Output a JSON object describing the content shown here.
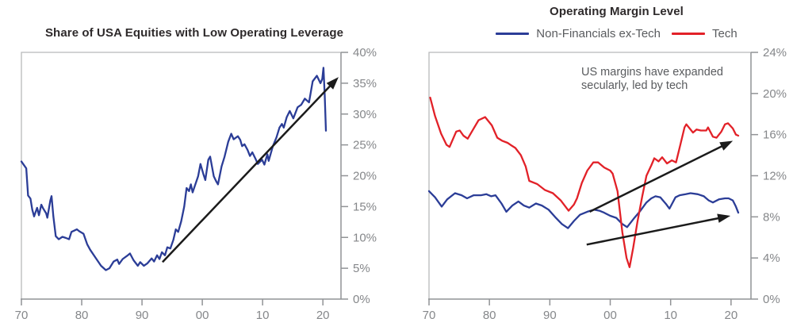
{
  "chart_data": [
    {
      "type": "line",
      "title": "Share of USA Equities with Low Operating Leverage",
      "xlabel": "",
      "ylabel": "",
      "grid": false,
      "x_range": [
        1970,
        2023
      ],
      "ylim": [
        0,
        40
      ],
      "x_ticks": [
        {
          "value": 1970,
          "label": "70"
        },
        {
          "value": 1980,
          "label": "80"
        },
        {
          "value": 1990,
          "label": "90"
        },
        {
          "value": 2000,
          "label": "00"
        },
        {
          "value": 2010,
          "label": "10"
        },
        {
          "value": 2020,
          "label": "20"
        }
      ],
      "y_ticks": [
        {
          "value": 0,
          "label": "0%"
        },
        {
          "value": 5,
          "label": "5%"
        },
        {
          "value": 10,
          "label": "10%"
        },
        {
          "value": 15,
          "label": "15%"
        },
        {
          "value": 20,
          "label": "20%"
        },
        {
          "value": 25,
          "label": "25%"
        },
        {
          "value": 30,
          "label": "30%"
        },
        {
          "value": 35,
          "label": "35%"
        },
        {
          "value": 40,
          "label": "40%"
        }
      ],
      "axis_color": "#919396",
      "frame_color": "#b8b9bb",
      "tick_label_color": "#85878a",
      "series": [
        {
          "name": "Share of USA equities with low operating leverage",
          "color": "#2b3d97",
          "points": [
            [
              1970.0,
              22.3
            ],
            [
              1970.8,
              21.2
            ],
            [
              1971.1,
              16.8
            ],
            [
              1971.5,
              16.3
            ],
            [
              1971.8,
              14.5
            ],
            [
              1972.1,
              13.4
            ],
            [
              1972.6,
              14.8
            ],
            [
              1972.9,
              13.6
            ],
            [
              1973.3,
              15.3
            ],
            [
              1973.6,
              14.7
            ],
            [
              1974.1,
              13.9
            ],
            [
              1974.3,
              13.2
            ],
            [
              1974.8,
              16.0
            ],
            [
              1975.0,
              16.7
            ],
            [
              1975.3,
              13.4
            ],
            [
              1975.7,
              10.2
            ],
            [
              1976.2,
              9.7
            ],
            [
              1976.8,
              10.1
            ],
            [
              1977.4,
              9.9
            ],
            [
              1977.9,
              9.7
            ],
            [
              1978.3,
              10.9
            ],
            [
              1979.2,
              11.3
            ],
            [
              1979.6,
              11.0
            ],
            [
              1980.3,
              10.6
            ],
            [
              1980.9,
              8.9
            ],
            [
              1981.4,
              8.0
            ],
            [
              1982.3,
              6.7
            ],
            [
              1983.2,
              5.4
            ],
            [
              1984.0,
              4.7
            ],
            [
              1984.6,
              5.0
            ],
            [
              1985.3,
              6.1
            ],
            [
              1985.9,
              6.4
            ],
            [
              1986.2,
              5.7
            ],
            [
              1986.8,
              6.5
            ],
            [
              1987.5,
              7.0
            ],
            [
              1988.0,
              7.4
            ],
            [
              1988.6,
              6.3
            ],
            [
              1989.3,
              5.4
            ],
            [
              1989.7,
              6.0
            ],
            [
              1990.3,
              5.4
            ],
            [
              1990.9,
              5.8
            ],
            [
              1991.6,
              6.6
            ],
            [
              1992.0,
              6.1
            ],
            [
              1992.5,
              7.1
            ],
            [
              1992.9,
              6.5
            ],
            [
              1993.3,
              7.6
            ],
            [
              1993.8,
              7.1
            ],
            [
              1994.2,
              8.4
            ],
            [
              1994.7,
              8.2
            ],
            [
              1995.2,
              9.6
            ],
            [
              1995.6,
              11.3
            ],
            [
              1996.0,
              10.9
            ],
            [
              1996.5,
              12.6
            ],
            [
              1997.0,
              15.0
            ],
            [
              1997.4,
              18.0
            ],
            [
              1997.8,
              17.5
            ],
            [
              1998.1,
              18.6
            ],
            [
              1998.4,
              17.3
            ],
            [
              1999.3,
              19.9
            ],
            [
              1999.7,
              21.9
            ],
            [
              2000.2,
              20.2
            ],
            [
              2000.5,
              19.3
            ],
            [
              2001.0,
              22.6
            ],
            [
              2001.3,
              23.1
            ],
            [
              2001.9,
              19.9
            ],
            [
              2002.3,
              19.1
            ],
            [
              2002.6,
              18.6
            ],
            [
              2003.2,
              21.5
            ],
            [
              2003.7,
              23.1
            ],
            [
              2004.3,
              25.5
            ],
            [
              2004.8,
              26.8
            ],
            [
              2005.2,
              25.9
            ],
            [
              2005.9,
              26.4
            ],
            [
              2006.3,
              25.8
            ],
            [
              2006.6,
              24.8
            ],
            [
              2007.0,
              25.1
            ],
            [
              2007.5,
              24.2
            ],
            [
              2007.9,
              23.2
            ],
            [
              2008.3,
              23.8
            ],
            [
              2008.8,
              22.8
            ],
            [
              2009.2,
              21.9
            ],
            [
              2009.9,
              22.6
            ],
            [
              2010.3,
              21.8
            ],
            [
              2010.8,
              23.5
            ],
            [
              2011.0,
              22.4
            ],
            [
              2011.7,
              24.8
            ],
            [
              2012.3,
              26.2
            ],
            [
              2012.8,
              27.8
            ],
            [
              2013.2,
              28.4
            ],
            [
              2013.5,
              27.8
            ],
            [
              2014.0,
              29.5
            ],
            [
              2014.5,
              30.5
            ],
            [
              2015.1,
              29.3
            ],
            [
              2015.8,
              31.1
            ],
            [
              2016.4,
              31.5
            ],
            [
              2017.0,
              32.5
            ],
            [
              2017.7,
              31.9
            ],
            [
              2018.3,
              35.3
            ],
            [
              2019.0,
              36.2
            ],
            [
              2019.6,
              35.0
            ],
            [
              2019.9,
              35.7
            ],
            [
              2020.1,
              37.5
            ],
            [
              2020.3,
              33.0
            ],
            [
              2020.5,
              27.3
            ]
          ]
        }
      ],
      "arrows": [
        {
          "from": [
            1993.4,
            6.0
          ],
          "to": [
            2022.6,
            36.0
          ],
          "color": "#1b1b1b"
        }
      ]
    },
    {
      "type": "line",
      "title": "Operating Margin Level",
      "xlabel": "",
      "ylabel": "",
      "grid": false,
      "legend_position": "top",
      "x_range": [
        1970,
        2023.3
      ],
      "ylim": [
        0,
        24
      ],
      "x_ticks": [
        {
          "value": 1970,
          "label": "70"
        },
        {
          "value": 1980,
          "label": "80"
        },
        {
          "value": 1990,
          "label": "90"
        },
        {
          "value": 2000,
          "label": "00"
        },
        {
          "value": 2010,
          "label": "10"
        },
        {
          "value": 2020,
          "label": "20"
        }
      ],
      "y_ticks": [
        {
          "value": 0,
          "label": "0%"
        },
        {
          "value": 4,
          "label": "4%"
        },
        {
          "value": 8,
          "label": "8%"
        },
        {
          "value": 12,
          "label": "12%"
        },
        {
          "value": 16,
          "label": "16%"
        },
        {
          "value": 20,
          "label": "20%"
        },
        {
          "value": 24,
          "label": "24%"
        }
      ],
      "axis_color": "#919396",
      "frame_color": "#b8b9bb",
      "tick_label_color": "#85878a",
      "legend": [
        {
          "label": "Non-Financials ex-Tech",
          "color": "#2b3d97"
        },
        {
          "label": "Tech",
          "color": "#e22128"
        }
      ],
      "annotation": {
        "lines": [
          "US margins have expanded",
          "secularly, led by tech"
        ],
        "color": "#595b5e"
      },
      "series": [
        {
          "name": "Non-Financials ex-Tech",
          "color": "#2b3d97",
          "points": [
            [
              1970.0,
              10.5
            ],
            [
              1971.0,
              9.9
            ],
            [
              1972.1,
              9.0
            ],
            [
              1973.0,
              9.7
            ],
            [
              1974.3,
              10.3
            ],
            [
              1975.4,
              10.1
            ],
            [
              1976.3,
              9.8
            ],
            [
              1977.4,
              10.1
            ],
            [
              1978.6,
              10.1
            ],
            [
              1979.5,
              10.2
            ],
            [
              1980.3,
              10.0
            ],
            [
              1981.0,
              10.1
            ],
            [
              1982.0,
              9.3
            ],
            [
              1982.8,
              8.5
            ],
            [
              1983.8,
              9.1
            ],
            [
              1984.8,
              9.5
            ],
            [
              1985.7,
              9.1
            ],
            [
              1986.6,
              8.9
            ],
            [
              1987.7,
              9.3
            ],
            [
              1988.7,
              9.1
            ],
            [
              1989.8,
              8.7
            ],
            [
              1991.0,
              7.9
            ],
            [
              1992.0,
              7.3
            ],
            [
              1993.0,
              6.9
            ],
            [
              1994.0,
              7.6
            ],
            [
              1995.0,
              8.2
            ],
            [
              1996.2,
              8.5
            ],
            [
              1997.3,
              8.7
            ],
            [
              1998.2,
              8.6
            ],
            [
              1999.0,
              8.4
            ],
            [
              2000.0,
              8.1
            ],
            [
              2001.0,
              7.9
            ],
            [
              2002.0,
              7.3
            ],
            [
              2002.8,
              7.0
            ],
            [
              2004.0,
              7.9
            ],
            [
              2005.0,
              8.6
            ],
            [
              2006.0,
              9.4
            ],
            [
              2006.8,
              9.8
            ],
            [
              2007.5,
              10.0
            ],
            [
              2008.3,
              9.9
            ],
            [
              2009.3,
              9.2
            ],
            [
              2009.8,
              8.8
            ],
            [
              2010.8,
              9.9
            ],
            [
              2011.5,
              10.1
            ],
            [
              2012.5,
              10.2
            ],
            [
              2013.3,
              10.3
            ],
            [
              2014.5,
              10.2
            ],
            [
              2015.5,
              10.0
            ],
            [
              2016.3,
              9.6
            ],
            [
              2017.0,
              9.4
            ],
            [
              2018.0,
              9.7
            ],
            [
              2019.0,
              9.8
            ],
            [
              2019.6,
              9.8
            ],
            [
              2020.3,
              9.6
            ],
            [
              2020.8,
              9.0
            ],
            [
              2021.2,
              8.4
            ]
          ]
        },
        {
          "name": "Tech",
          "color": "#e22128",
          "points": [
            [
              1970.2,
              19.6
            ],
            [
              1971.0,
              17.8
            ],
            [
              1972.0,
              16.1
            ],
            [
              1972.9,
              15.0
            ],
            [
              1973.4,
              14.8
            ],
            [
              1974.5,
              16.3
            ],
            [
              1975.1,
              16.4
            ],
            [
              1975.7,
              15.9
            ],
            [
              1976.4,
              15.6
            ],
            [
              1977.3,
              16.5
            ],
            [
              1978.2,
              17.4
            ],
            [
              1979.3,
              17.7
            ],
            [
              1980.4,
              16.9
            ],
            [
              1981.3,
              15.7
            ],
            [
              1982.1,
              15.4
            ],
            [
              1983.0,
              15.2
            ],
            [
              1983.5,
              15.0
            ],
            [
              1984.3,
              14.7
            ],
            [
              1985.2,
              14.0
            ],
            [
              1986.0,
              12.9
            ],
            [
              1986.6,
              11.5
            ],
            [
              1987.9,
              11.2
            ],
            [
              1989.2,
              10.6
            ],
            [
              1990.5,
              10.3
            ],
            [
              1991.8,
              9.6
            ],
            [
              1993.1,
              8.6
            ],
            [
              1994.0,
              9.2
            ],
            [
              1994.5,
              9.8
            ],
            [
              1995.3,
              11.3
            ],
            [
              1996.2,
              12.5
            ],
            [
              1997.2,
              13.3
            ],
            [
              1998.0,
              13.3
            ],
            [
              1999.0,
              12.8
            ],
            [
              2000.0,
              12.5
            ],
            [
              2000.4,
              12.2
            ],
            [
              2001.2,
              10.5
            ],
            [
              2002.0,
              6.5
            ],
            [
              2002.7,
              4.0
            ],
            [
              2003.2,
              3.1
            ],
            [
              2003.8,
              5.0
            ],
            [
              2004.5,
              7.5
            ],
            [
              2005.3,
              10.0
            ],
            [
              2006.0,
              12.0
            ],
            [
              2006.8,
              13.0
            ],
            [
              2007.3,
              13.7
            ],
            [
              2008.0,
              13.4
            ],
            [
              2008.6,
              13.8
            ],
            [
              2009.4,
              13.2
            ],
            [
              2010.2,
              13.5
            ],
            [
              2010.9,
              13.3
            ],
            [
              2011.6,
              15.0
            ],
            [
              2012.3,
              16.7
            ],
            [
              2012.6,
              17.0
            ],
            [
              2013.7,
              16.2
            ],
            [
              2014.3,
              16.5
            ],
            [
              2015.0,
              16.4
            ],
            [
              2015.9,
              16.4
            ],
            [
              2016.2,
              16.7
            ],
            [
              2017.0,
              15.8
            ],
            [
              2017.6,
              15.7
            ],
            [
              2018.4,
              16.3
            ],
            [
              2019.0,
              17.0
            ],
            [
              2019.5,
              17.1
            ],
            [
              2020.3,
              16.6
            ],
            [
              2020.8,
              16.0
            ],
            [
              2021.2,
              15.9
            ]
          ]
        }
      ],
      "arrows": [
        {
          "from": [
            1996.6,
            8.5
          ],
          "to": [
            2020.3,
            15.4
          ],
          "color": "#1b1b1b"
        },
        {
          "from": [
            1996.1,
            5.3
          ],
          "to": [
            2019.9,
            8.1
          ],
          "color": "#1b1b1b"
        }
      ]
    }
  ]
}
